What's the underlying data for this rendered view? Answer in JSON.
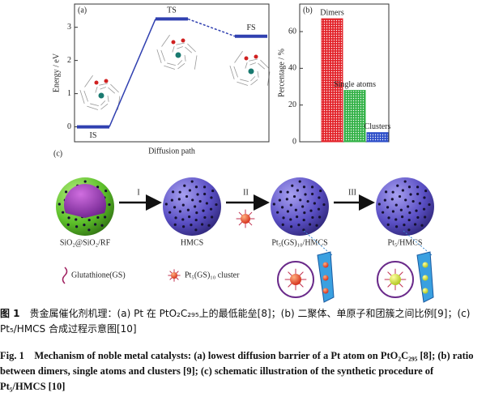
{
  "chart_data": [
    {
      "type": "energy",
      "panel_label": "(a)",
      "ylabel": "Energy / eV",
      "xlabel": "Diffusion path",
      "categories": [
        "IS",
        "TS",
        "FS"
      ],
      "values": [
        0,
        3.25,
        2.73
      ],
      "color": "#3040b0",
      "ylim": [
        -0.45,
        3.7
      ],
      "yticks": [
        0,
        1,
        2,
        3
      ]
    },
    {
      "type": "bar",
      "panel_label": "(b)",
      "ylabel": "Percentage / %",
      "categories": [
        "Dimers",
        "Single atoms",
        "Clusters"
      ],
      "values": [
        67,
        28,
        5
      ],
      "colors": [
        "#e3242b",
        "#34b248",
        "#2e4fc9"
      ],
      "ylim": [
        0,
        75
      ],
      "yticks": [
        0,
        20,
        40,
        60
      ]
    }
  ],
  "schematic": {
    "panel_label": "(c)",
    "steps": [
      "I",
      "II",
      "III"
    ],
    "labels": [
      "SiO₂@SiO₂/RF",
      "HMCS",
      "Pt₅(GS)₁₀/HMCS",
      "Pt₅/HMCS"
    ],
    "legend": [
      "Glutathione(GS)",
      "Pt₅(GS)₁₀ cluster"
    ]
  },
  "caption": {
    "cn_label": "图 1",
    "cn_text": "贵金属催化剂机理：(a) Pt 在 PtO₂C₂₉₅上的最低能垒[8]；(b) 二聚体、单原子和团簇之间比例[9]；(c) Pt₅/HMCS 合成过程示意图[10]",
    "en_label": "Fig. 1",
    "en_text": "Mechanism of noble metal catalysts: (a) lowest diffusion barrier of a Pt atom on PtO₂C₂₉₅ [8]; (b) ratio between dimers, single atoms and clusters [9]; (c) schematic illustration of the synthetic procedure of Pt₅/HMCS [10]"
  }
}
